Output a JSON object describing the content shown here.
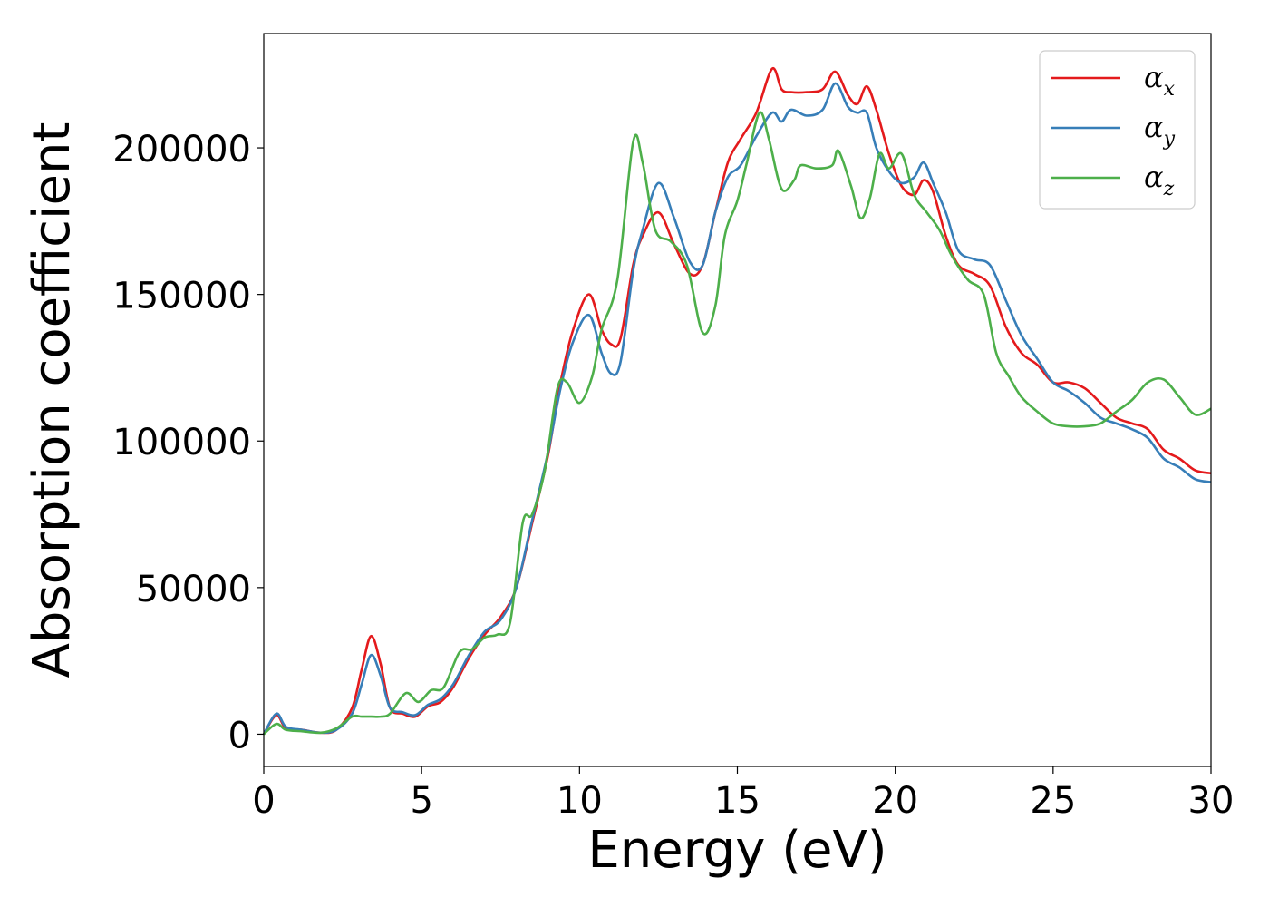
{
  "chart_data": {
    "type": "line",
    "xlabel": "Energy (eV)",
    "ylabel": "Absorption coefficient",
    "xlim": [
      0,
      30
    ],
    "ylim": [
      -11000,
      239000
    ],
    "xticks": [
      0,
      5,
      10,
      15,
      20,
      25,
      30
    ],
    "yticks": [
      0,
      50000,
      100000,
      150000,
      200000
    ],
    "grid": false,
    "legend_position": "top-right",
    "series": [
      {
        "name": "α_x",
        "symbol": "α",
        "subscript": "x",
        "color": "#e41a1c",
        "points": [
          [
            0,
            0
          ],
          [
            0.4,
            6500
          ],
          [
            0.7,
            2000
          ],
          [
            1.2,
            1500
          ],
          [
            1.8,
            500
          ],
          [
            2.3,
            1500
          ],
          [
            2.8,
            9000
          ],
          [
            3.1,
            22000
          ],
          [
            3.4,
            33500
          ],
          [
            3.7,
            24000
          ],
          [
            4.0,
            9000
          ],
          [
            4.4,
            7000
          ],
          [
            4.8,
            6000
          ],
          [
            5.2,
            9500
          ],
          [
            5.6,
            11000
          ],
          [
            6.0,
            16000
          ],
          [
            6.5,
            26000
          ],
          [
            7.0,
            34000
          ],
          [
            7.5,
            40000
          ],
          [
            8.0,
            50000
          ],
          [
            8.5,
            72000
          ],
          [
            9.0,
            95000
          ],
          [
            9.4,
            120000
          ],
          [
            9.8,
            138000
          ],
          [
            10.3,
            150000
          ],
          [
            10.7,
            138000
          ],
          [
            11.0,
            133000
          ],
          [
            11.3,
            135000
          ],
          [
            11.7,
            160000
          ],
          [
            12.0,
            170000
          ],
          [
            12.5,
            178000
          ],
          [
            13.0,
            167000
          ],
          [
            13.5,
            157000
          ],
          [
            13.9,
            160000
          ],
          [
            14.3,
            178000
          ],
          [
            14.7,
            195000
          ],
          [
            15.1,
            203000
          ],
          [
            15.6,
            212000
          ],
          [
            16.1,
            227000
          ],
          [
            16.4,
            220000
          ],
          [
            16.7,
            219000
          ],
          [
            17.2,
            219000
          ],
          [
            17.7,
            220000
          ],
          [
            18.1,
            226000
          ],
          [
            18.5,
            218000
          ],
          [
            18.8,
            215000
          ],
          [
            19.1,
            221000
          ],
          [
            19.4,
            213000
          ],
          [
            19.8,
            198000
          ],
          [
            20.2,
            187000
          ],
          [
            20.6,
            184000
          ],
          [
            20.9,
            189000
          ],
          [
            21.2,
            185000
          ],
          [
            21.6,
            170000
          ],
          [
            22.0,
            160000
          ],
          [
            22.5,
            157000
          ],
          [
            23.0,
            153000
          ],
          [
            23.5,
            139000
          ],
          [
            24.0,
            130000
          ],
          [
            24.5,
            126000
          ],
          [
            25.0,
            120000
          ],
          [
            25.5,
            120000
          ],
          [
            26.0,
            118000
          ],
          [
            26.5,
            113000
          ],
          [
            27.0,
            108000
          ],
          [
            27.5,
            106000
          ],
          [
            28.0,
            104000
          ],
          [
            28.5,
            97000
          ],
          [
            29.0,
            94000
          ],
          [
            29.5,
            90000
          ],
          [
            30.0,
            89000
          ]
        ]
      },
      {
        "name": "α_y",
        "symbol": "α",
        "subscript": "y",
        "color": "#377eb8",
        "points": [
          [
            0,
            0
          ],
          [
            0.4,
            7000
          ],
          [
            0.7,
            2500
          ],
          [
            1.2,
            1500
          ],
          [
            1.8,
            500
          ],
          [
            2.3,
            1500
          ],
          [
            2.8,
            7000
          ],
          [
            3.1,
            17000
          ],
          [
            3.4,
            27000
          ],
          [
            3.7,
            20000
          ],
          [
            4.0,
            9000
          ],
          [
            4.4,
            7500
          ],
          [
            4.8,
            6500
          ],
          [
            5.2,
            10000
          ],
          [
            5.6,
            12000
          ],
          [
            6.0,
            17000
          ],
          [
            6.5,
            27000
          ],
          [
            7.0,
            35000
          ],
          [
            7.5,
            39000
          ],
          [
            8.0,
            50000
          ],
          [
            8.5,
            73000
          ],
          [
            9.0,
            96000
          ],
          [
            9.4,
            118000
          ],
          [
            9.8,
            134000
          ],
          [
            10.3,
            143000
          ],
          [
            10.7,
            130000
          ],
          [
            11.0,
            123000
          ],
          [
            11.3,
            127000
          ],
          [
            11.7,
            158000
          ],
          [
            12.0,
            172000
          ],
          [
            12.5,
            188000
          ],
          [
            13.0,
            176000
          ],
          [
            13.5,
            161000
          ],
          [
            13.9,
            160000
          ],
          [
            14.3,
            178000
          ],
          [
            14.7,
            190000
          ],
          [
            15.1,
            194000
          ],
          [
            15.6,
            204000
          ],
          [
            16.1,
            212000
          ],
          [
            16.4,
            209000
          ],
          [
            16.7,
            213000
          ],
          [
            17.2,
            211000
          ],
          [
            17.7,
            213000
          ],
          [
            18.1,
            222000
          ],
          [
            18.5,
            214000
          ],
          [
            18.8,
            212000
          ],
          [
            19.1,
            212000
          ],
          [
            19.4,
            200000
          ],
          [
            19.8,
            192000
          ],
          [
            20.2,
            188000
          ],
          [
            20.6,
            190000
          ],
          [
            20.9,
            195000
          ],
          [
            21.2,
            188000
          ],
          [
            21.6,
            178000
          ],
          [
            22.0,
            165000
          ],
          [
            22.5,
            162000
          ],
          [
            23.0,
            160000
          ],
          [
            23.5,
            148000
          ],
          [
            24.0,
            136000
          ],
          [
            24.5,
            128000
          ],
          [
            25.0,
            120000
          ],
          [
            25.5,
            117000
          ],
          [
            26.0,
            113000
          ],
          [
            26.5,
            108000
          ],
          [
            27.0,
            106000
          ],
          [
            27.5,
            104000
          ],
          [
            28.0,
            101000
          ],
          [
            28.5,
            94000
          ],
          [
            29.0,
            91000
          ],
          [
            29.5,
            87000
          ],
          [
            30.0,
            86000
          ]
        ]
      },
      {
        "name": "α_z",
        "symbol": "α",
        "subscript": "z",
        "color": "#4daf4a",
        "points": [
          [
            0,
            0
          ],
          [
            0.4,
            3500
          ],
          [
            0.7,
            1500
          ],
          [
            1.2,
            1000
          ],
          [
            1.8,
            500
          ],
          [
            2.3,
            2000
          ],
          [
            2.8,
            6000
          ],
          [
            3.1,
            6000
          ],
          [
            3.4,
            6000
          ],
          [
            3.7,
            6000
          ],
          [
            4.0,
            7000
          ],
          [
            4.5,
            14000
          ],
          [
            4.9,
            11000
          ],
          [
            5.3,
            15000
          ],
          [
            5.7,
            16000
          ],
          [
            6.2,
            28000
          ],
          [
            6.6,
            29000
          ],
          [
            7.0,
            33000
          ],
          [
            7.4,
            34000
          ],
          [
            7.8,
            38000
          ],
          [
            8.2,
            72000
          ],
          [
            8.5,
            75000
          ],
          [
            8.9,
            90000
          ],
          [
            9.3,
            118000
          ],
          [
            9.6,
            120000
          ],
          [
            10.0,
            113000
          ],
          [
            10.4,
            122000
          ],
          [
            10.7,
            138000
          ],
          [
            11.2,
            155000
          ],
          [
            11.7,
            202000
          ],
          [
            12.0,
            195000
          ],
          [
            12.4,
            172000
          ],
          [
            12.9,
            168000
          ],
          [
            13.4,
            160000
          ],
          [
            13.9,
            137000
          ],
          [
            14.3,
            146000
          ],
          [
            14.6,
            170000
          ],
          [
            15.0,
            182000
          ],
          [
            15.3,
            195000
          ],
          [
            15.7,
            212000
          ],
          [
            16.0,
            203000
          ],
          [
            16.4,
            186000
          ],
          [
            16.8,
            189000
          ],
          [
            17.0,
            194000
          ],
          [
            17.5,
            193000
          ],
          [
            18.0,
            194000
          ],
          [
            18.2,
            199000
          ],
          [
            18.6,
            187000
          ],
          [
            18.9,
            176000
          ],
          [
            19.2,
            183000
          ],
          [
            19.5,
            198000
          ],
          [
            19.8,
            193000
          ],
          [
            20.2,
            198000
          ],
          [
            20.6,
            184000
          ],
          [
            21.0,
            178000
          ],
          [
            21.4,
            172000
          ],
          [
            21.8,
            163000
          ],
          [
            22.3,
            155000
          ],
          [
            22.8,
            150000
          ],
          [
            23.2,
            130000
          ],
          [
            23.6,
            122000
          ],
          [
            24.0,
            115000
          ],
          [
            24.5,
            110000
          ],
          [
            25.0,
            106000
          ],
          [
            25.5,
            105000
          ],
          [
            26.0,
            105000
          ],
          [
            26.5,
            106000
          ],
          [
            27.0,
            110000
          ],
          [
            27.5,
            114000
          ],
          [
            28.0,
            120000
          ],
          [
            28.5,
            121000
          ],
          [
            29.0,
            115000
          ],
          [
            29.5,
            109000
          ],
          [
            30.0,
            111000
          ]
        ]
      }
    ]
  }
}
